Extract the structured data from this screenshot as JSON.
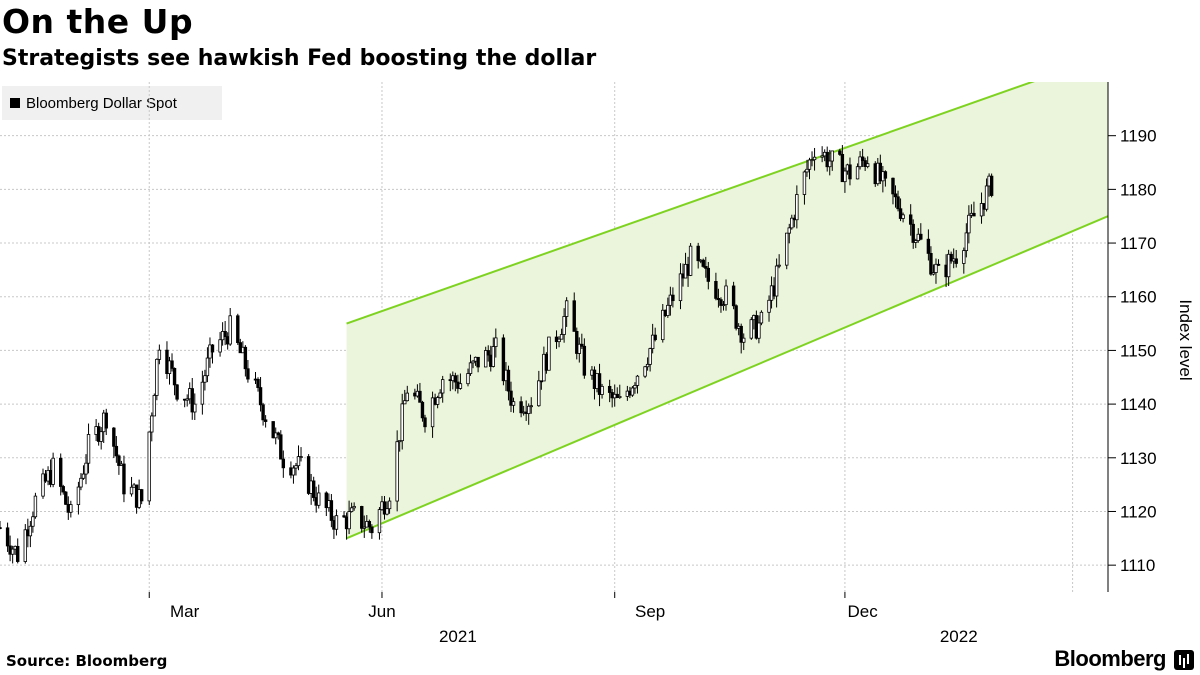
{
  "header": {
    "title": "On the Up",
    "subtitle": "Strategists see hawkish Fed boosting the dollar"
  },
  "legend": {
    "label": "Bloomberg Dollar Spot"
  },
  "footer": {
    "source": "Source: Bloomberg",
    "brand": "Bloomberg"
  },
  "colors": {
    "channel_fill": "#ebf5dc",
    "channel_line": "#7ed321",
    "candle": "#000000",
    "grid": "#c8c8c8"
  },
  "chart_data": {
    "type": "line",
    "style": "candlestick-ohlc",
    "series": [
      {
        "name": "Bloomberg Dollar Spot"
      }
    ],
    "ylabel": "Index level",
    "ylim": [
      1105,
      1200
    ],
    "yticks": [
      1110,
      1120,
      1130,
      1140,
      1150,
      1160,
      1170,
      1180,
      1190
    ],
    "xtick_labels": [
      "Mar",
      "Jun",
      "Sep",
      "Dec"
    ],
    "year_labels": [
      "2021",
      "2022"
    ],
    "x_range": [
      "2021-01-01",
      "2022-03-15"
    ],
    "grid": true,
    "legend_position": "top-left",
    "channel": {
      "start": "2021-05-18",
      "end": "2022-03-15",
      "upper": [
        1155,
        1205
      ],
      "lower": [
        1115,
        1175
      ]
    },
    "data": [
      {
        "d": "2021-01-01",
        "v": 1117
      },
      {
        "d": "2021-01-08",
        "v": 1112
      },
      {
        "d": "2021-01-15",
        "v": 1122
      },
      {
        "d": "2021-01-22",
        "v": 1128
      },
      {
        "d": "2021-01-29",
        "v": 1119
      },
      {
        "d": "2021-02-05",
        "v": 1132
      },
      {
        "d": "2021-02-12",
        "v": 1138
      },
      {
        "d": "2021-02-19",
        "v": 1125
      },
      {
        "d": "2021-02-26",
        "v": 1122
      },
      {
        "d": "2021-03-05",
        "v": 1152
      },
      {
        "d": "2021-03-12",
        "v": 1143
      },
      {
        "d": "2021-03-19",
        "v": 1140
      },
      {
        "d": "2021-03-26",
        "v": 1150
      },
      {
        "d": "2021-04-02",
        "v": 1154
      },
      {
        "d": "2021-04-09",
        "v": 1146
      },
      {
        "d": "2021-04-16",
        "v": 1138
      },
      {
        "d": "2021-04-23",
        "v": 1130
      },
      {
        "d": "2021-04-30",
        "v": 1128
      },
      {
        "d": "2021-05-07",
        "v": 1122
      },
      {
        "d": "2021-05-14",
        "v": 1118
      },
      {
        "d": "2021-05-21",
        "v": 1119
      },
      {
        "d": "2021-05-28",
        "v": 1117
      },
      {
        "d": "2021-06-04",
        "v": 1124
      },
      {
        "d": "2021-06-11",
        "v": 1143
      },
      {
        "d": "2021-06-18",
        "v": 1138
      },
      {
        "d": "2021-06-25",
        "v": 1145
      },
      {
        "d": "2021-07-02",
        "v": 1144
      },
      {
        "d": "2021-07-09",
        "v": 1148
      },
      {
        "d": "2021-07-16",
        "v": 1150
      },
      {
        "d": "2021-07-23",
        "v": 1140
      },
      {
        "d": "2021-07-30",
        "v": 1141
      },
      {
        "d": "2021-08-06",
        "v": 1150
      },
      {
        "d": "2021-08-13",
        "v": 1157
      },
      {
        "d": "2021-08-20",
        "v": 1147
      },
      {
        "d": "2021-08-27",
        "v": 1142
      },
      {
        "d": "2021-09-03",
        "v": 1140
      },
      {
        "d": "2021-09-10",
        "v": 1146
      },
      {
        "d": "2021-09-17",
        "v": 1152
      },
      {
        "d": "2021-09-24",
        "v": 1160
      },
      {
        "d": "2021-10-01",
        "v": 1167
      },
      {
        "d": "2021-10-08",
        "v": 1163
      },
      {
        "d": "2021-10-15",
        "v": 1160
      },
      {
        "d": "2021-10-22",
        "v": 1153
      },
      {
        "d": "2021-10-29",
        "v": 1155
      },
      {
        "d": "2021-11-05",
        "v": 1165
      },
      {
        "d": "2021-11-12",
        "v": 1178
      },
      {
        "d": "2021-11-19",
        "v": 1188
      },
      {
        "d": "2021-11-26",
        "v": 1185
      },
      {
        "d": "2021-12-03",
        "v": 1183
      },
      {
        "d": "2021-12-10",
        "v": 1186
      },
      {
        "d": "2021-12-17",
        "v": 1180
      },
      {
        "d": "2021-12-24",
        "v": 1176
      },
      {
        "d": "2021-12-31",
        "v": 1170
      },
      {
        "d": "2022-01-07",
        "v": 1164
      },
      {
        "d": "2022-01-14",
        "v": 1168
      },
      {
        "d": "2022-01-21",
        "v": 1175
      },
      {
        "d": "2022-01-28",
        "v": 1181
      }
    ]
  }
}
